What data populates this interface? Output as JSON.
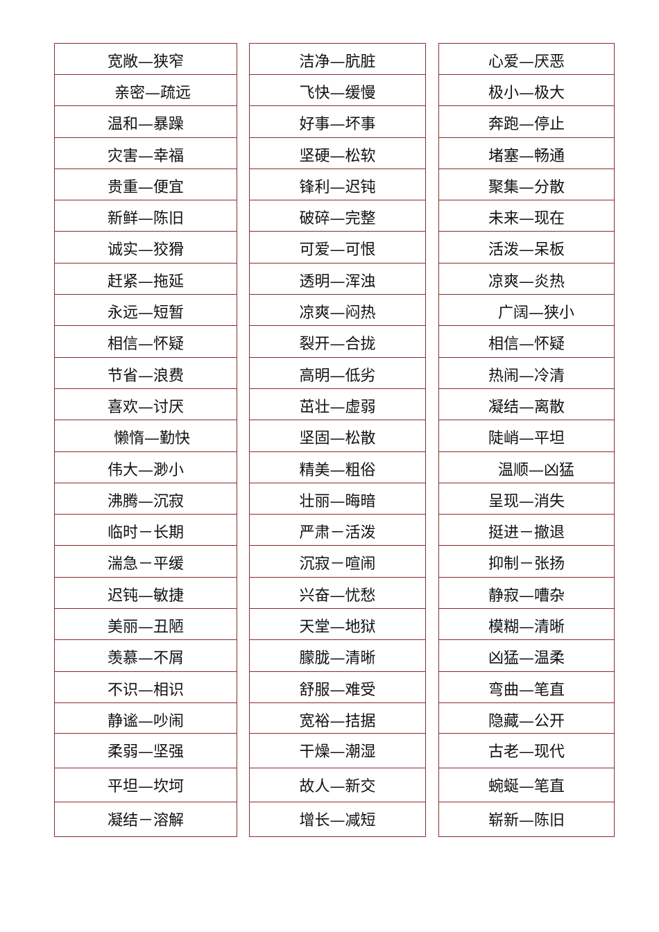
{
  "table": {
    "columns": [
      [
        "宽敞—狭窄",
        "亲密—疏远",
        "温和—暴躁",
        "灾害—幸福",
        "贵重—便宜",
        "新鲜—陈旧",
        "诚实—狡猾",
        "赶紧—拖延",
        "永远—短暂",
        "相信—怀疑",
        "节省—浪费",
        "喜欢—讨厌",
        "懒惰—勤快",
        "伟大—渺小",
        "沸腾—沉寂",
        "临时－长期",
        "湍急－平缓",
        "迟钝—敏捷",
        "美丽—丑陋",
        "羡慕—不屑",
        "不识—相识",
        "静谧—吵闹",
        "柔弱—坚强",
        "平坦—坎坷",
        "凝结－溶解"
      ],
      [
        "洁净—肮脏",
        "飞快—缓慢",
        "好事—坏事",
        "坚硬—松软",
        "锋利—迟钝",
        "破碎—完整",
        "可爱—可恨",
        "透明—浑浊",
        "凉爽—闷热",
        "裂开—合拢",
        "高明—低劣",
        "茁壮—虚弱",
        "坚固—松散",
        "精美—粗俗",
        "壮丽—晦暗",
        "严肃－活泼",
        "沉寂－喧闹",
        "兴奋—忧愁",
        "天堂—地狱",
        "朦胧—清晰",
        "舒服—难受",
        "宽裕—拮据",
        "干燥—潮湿",
        "故人—新交",
        "增长—减短"
      ],
      [
        "心爱—厌恶",
        "极小—极大",
        "奔跑—停止",
        "堵塞—畅通",
        "聚集—分散",
        "未来—现在",
        "活泼—呆板",
        "凉爽—炎热",
        "广阔—狭小",
        "相信—怀疑",
        "热闹—冷清",
        "凝结—离散",
        "陡峭—平坦",
        "温顺—凶猛",
        "呈现—消失",
        "挺进－撤退",
        "抑制－张扬",
        "静寂—嘈杂",
        "模糊—清晰",
        "凶猛—温柔",
        "弯曲—笔直",
        "隐藏—公开",
        "古老—现代",
        "蜿蜒—笔直",
        "崭新—陈旧"
      ]
    ],
    "border_color": "#8a2a2a"
  }
}
